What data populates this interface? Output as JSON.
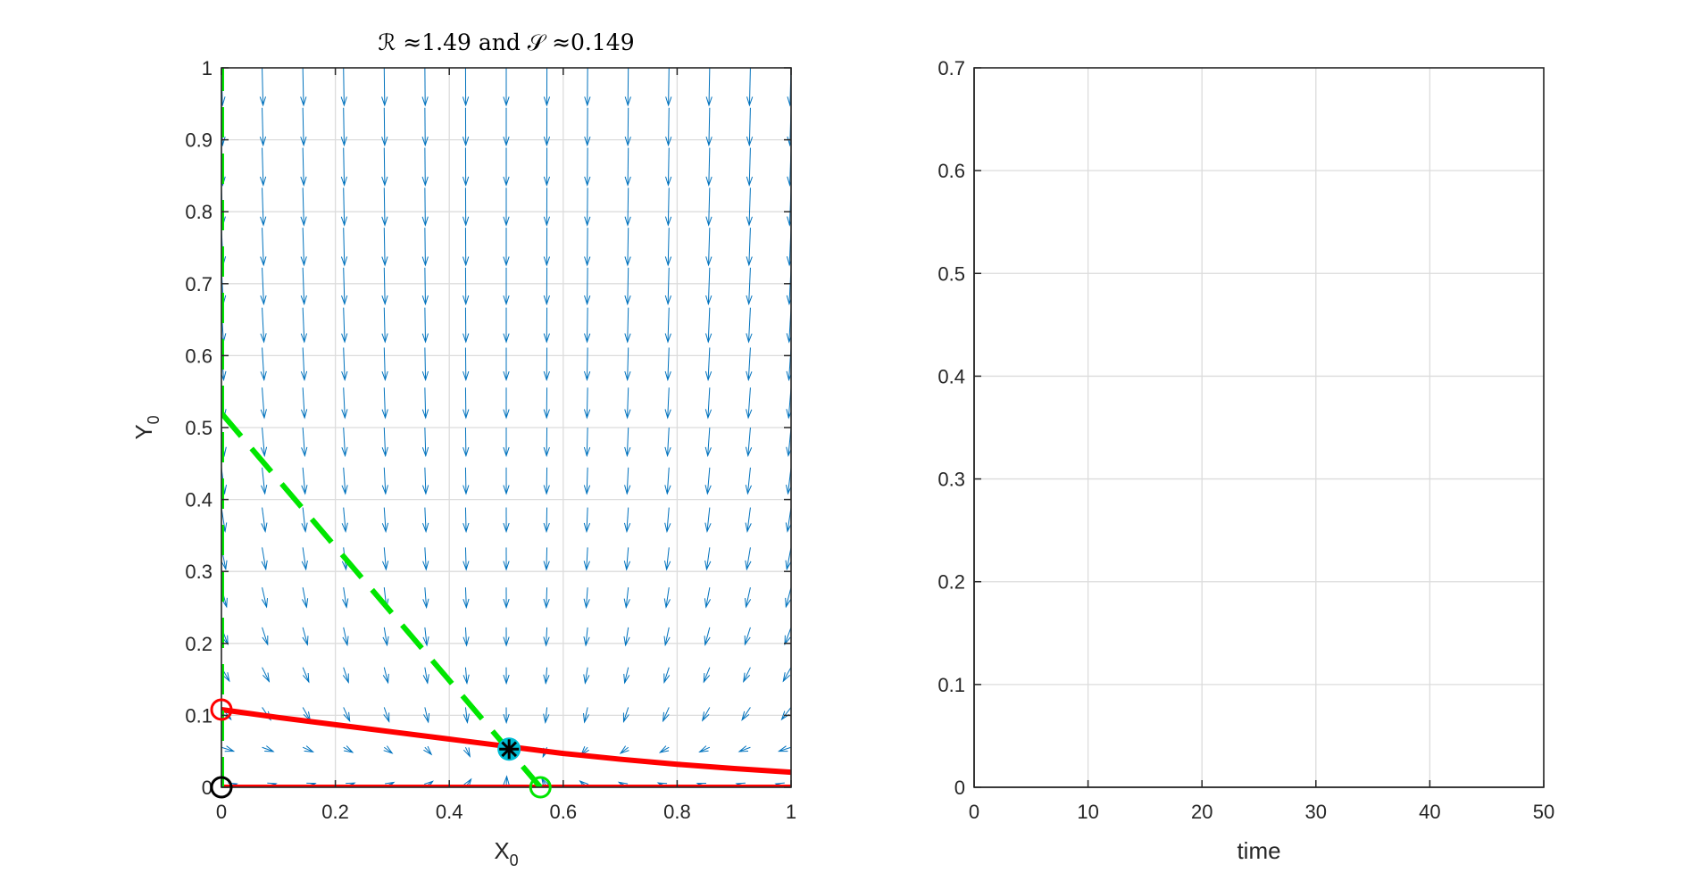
{
  "chart_data": [
    {
      "type": "line",
      "title": "ℛ ≈1.49 and 𝒮 ≈0.149",
      "xlabel": "X",
      "xlabel_sub": "0",
      "ylabel": "Y",
      "ylabel_sub": "0",
      "xlim": [
        0,
        1
      ],
      "ylim": [
        0,
        1
      ],
      "xticks": [
        0,
        0.2,
        0.4,
        0.6,
        0.8,
        1
      ],
      "xtick_labels": [
        "0",
        "0.2",
        "0.4",
        "0.6",
        "0.8",
        "1"
      ],
      "yticks": [
        0,
        0.1,
        0.2,
        0.3,
        0.4,
        0.5,
        0.6,
        0.7,
        0.8,
        0.9,
        1
      ],
      "ytick_labels": [
        "0",
        "0.1",
        "0.2",
        "0.3",
        "0.4",
        "0.5",
        "0.6",
        "0.7",
        "0.8",
        "0.9",
        "1"
      ],
      "grid": true,
      "colors": {
        "red": "#ff0000",
        "green": "#00e600",
        "quiver": "#0072bd",
        "star_fill": "#00bcd4",
        "black": "#000000"
      },
      "series": [
        {
          "kind": "curve",
          "color": "red",
          "style": "solid",
          "x": [
            0,
            0.1,
            0.2,
            0.3,
            0.4,
            0.5,
            0.6,
            0.7,
            0.8,
            0.9,
            1
          ],
          "y": [
            0.108,
            0.097,
            0.087,
            0.077,
            0.067,
            0.057,
            0.047,
            0.039,
            0.032,
            0.026,
            0.021
          ]
        },
        {
          "kind": "curve",
          "color": "red",
          "style": "solid",
          "x": [
            0,
            1
          ],
          "y": [
            0,
            0
          ]
        },
        {
          "kind": "curve",
          "color": "green",
          "style": "dashed",
          "x": [
            0,
            0
          ],
          "y": [
            0,
            1
          ]
        },
        {
          "kind": "curve",
          "color": "green",
          "style": "dashed",
          "x": [
            0,
            0.56
          ],
          "y": [
            0.52,
            0
          ]
        }
      ],
      "points": [
        {
          "name": "red-circle",
          "x": 0,
          "y": 0.108,
          "marker": "o",
          "color": "red"
        },
        {
          "name": "black-circle",
          "x": 0,
          "y": 0,
          "marker": "o",
          "color": "black"
        },
        {
          "name": "green-circle",
          "x": 0.56,
          "y": 0,
          "marker": "o",
          "color": "green"
        },
        {
          "name": "equilibrium-star",
          "x": 0.505,
          "y": 0.053,
          "marker": "*",
          "color": "black"
        }
      ]
    },
    {
      "type": "line",
      "title": "",
      "xlabel": "time",
      "ylabel": "",
      "xlim": [
        0,
        50
      ],
      "ylim": [
        0,
        0.7
      ],
      "xticks": [
        0,
        10,
        20,
        30,
        40,
        50
      ],
      "xtick_labels": [
        "0",
        "10",
        "20",
        "30",
        "40",
        "50"
      ],
      "yticks": [
        0,
        0.1,
        0.2,
        0.3,
        0.4,
        0.5,
        0.6,
        0.7
      ],
      "ytick_labels": [
        "0",
        "0.1",
        "0.2",
        "0.3",
        "0.4",
        "0.5",
        "0.6",
        "0.7"
      ],
      "grid": true,
      "series": []
    }
  ]
}
